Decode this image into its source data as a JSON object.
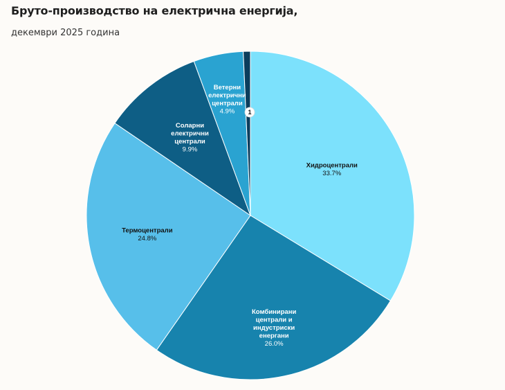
{
  "page": {
    "title": "Бруто-производство на електрична енергија,",
    "subtitle": "декември 2025 година"
  },
  "chart_data": {
    "type": "pie",
    "title": "Бруто-производство на електрична енергија,",
    "subtitle": "декември 2025 година",
    "unit": "%",
    "start_angle_deg": 0,
    "direction": "clockwise",
    "slices": [
      {
        "label_lines": [
          "Хидроцентрали"
        ],
        "value": 33.7,
        "value_label": "33.7%",
        "color": "#7ce1fc",
        "label_color": "#111111"
      },
      {
        "label_lines": [
          "Комбинирани",
          "централи и",
          "индустриски",
          "енергани"
        ],
        "value": 26.0,
        "value_label": "26.0%",
        "color": "#1783ad",
        "label_color": "#ffffff"
      },
      {
        "label_lines": [
          "Термоцентрали"
        ],
        "value": 24.8,
        "value_label": "24.8%",
        "color": "#57bfea",
        "label_color": "#111111"
      },
      {
        "label_lines": [
          "Соларни",
          "електрични",
          "централи"
        ],
        "value": 9.9,
        "value_label": "9.9%",
        "color": "#0e5e85",
        "label_color": "#ffffff"
      },
      {
        "label_lines": [
          "Ветерни",
          "електрични",
          "централи"
        ],
        "value": 4.9,
        "value_label": "4.9%",
        "color": "#2aa3d1",
        "label_color": "#ffffff"
      },
      {
        "label_lines": [],
        "value": 0.7,
        "value_label": "",
        "color": "#0b3d5c",
        "label_color": "#ffffff"
      }
    ],
    "callout": {
      "text": "1",
      "slice_index": 5
    }
  }
}
